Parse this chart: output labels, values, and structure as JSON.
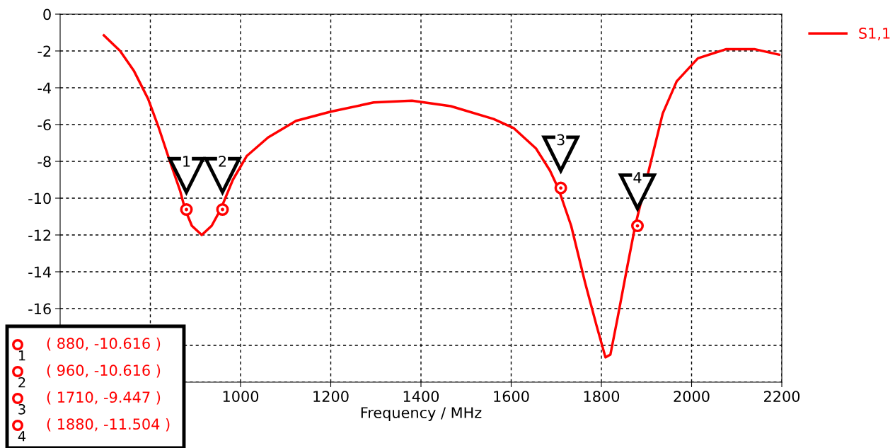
{
  "chart_data": {
    "type": "line",
    "xlabel": "Frequency / MHz",
    "xlim": [
      600,
      2200
    ],
    "ylim": [
      -20,
      0
    ],
    "xticks": [
      {
        "value": 800,
        "label": null
      },
      1000,
      1200,
      1400,
      1600,
      1800,
      2000,
      2200
    ],
    "yticks": [
      {
        "value": -20,
        "label": null
      },
      {
        "value": -18,
        "label": null
      },
      -16,
      -14,
      -12,
      -10,
      -8,
      -6,
      -4,
      -2,
      0
    ],
    "grid": true,
    "legend": "top right",
    "line_style": "solid",
    "series": [
      {
        "name": "S1,1",
        "color": "#ff0000",
        "marker": "none",
        "x": [
          697,
          733,
          764,
          795,
          819,
          842,
          866,
          877,
          892,
          914,
          936,
          956,
          983,
          1014,
          1061,
          1123,
          1200,
          1295,
          1380,
          1466,
          1561,
          1606,
          1655,
          1686,
          1705,
          1733,
          1764,
          1789,
          1809,
          1820,
          1836,
          1858,
          1875,
          1905,
          1936,
          1967,
          2014,
          2077,
          2139,
          2194
        ],
        "values": [
          -1.15,
          -2.0,
          -3.1,
          -4.6,
          -6.2,
          -7.9,
          -9.6,
          -10.6,
          -11.5,
          -12.0,
          -11.5,
          -10.6,
          -9.0,
          -7.7,
          -6.7,
          -5.8,
          -5.3,
          -4.8,
          -4.7,
          -5.0,
          -5.7,
          -6.2,
          -7.3,
          -8.5,
          -9.5,
          -11.5,
          -14.6,
          -16.9,
          -18.65,
          -18.5,
          -16.5,
          -13.65,
          -11.5,
          -8.5,
          -5.4,
          -3.65,
          -2.4,
          -1.9,
          -1.9,
          -2.2
        ]
      },
      {
        "type": "scatter",
        "color": "#ff0000",
        "marker": "circle",
        "x": [
          880,
          960,
          1710,
          1880
        ],
        "values": [
          -10.616,
          -10.616,
          -9.447,
          -11.504
        ]
      }
    ],
    "annotations": [
      {
        "text": "1",
        "x": 880,
        "y": -10.616
      },
      {
        "text": "2",
        "x": 960,
        "y": -10.616
      },
      {
        "text": "3",
        "x": 1710,
        "y": -9.447
      },
      {
        "text": "4",
        "x": 1880,
        "y": -11.504
      },
      "( 880, -10.616 )",
      "( 960, -10.616 )",
      "( 1710, -9.447 )",
      "( 1880, -11.504 )"
    ]
  }
}
